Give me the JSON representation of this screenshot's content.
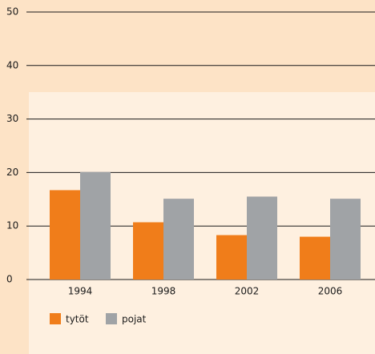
{
  "chart_data": {
    "type": "bar",
    "categories": [
      "1994",
      "1998",
      "2002",
      "2006"
    ],
    "series": [
      {
        "name": "tytöt",
        "color": "#f07d1a",
        "values": [
          16.7,
          10.7,
          8.3,
          8.0
        ]
      },
      {
        "name": "pojat",
        "color": "#a0a3a6",
        "values": [
          20.1,
          15.1,
          15.5,
          15.1
        ]
      }
    ],
    "ylim": [
      0,
      50
    ],
    "yticks": [
      0,
      10,
      20,
      30,
      40,
      50
    ],
    "grid": true
  }
}
